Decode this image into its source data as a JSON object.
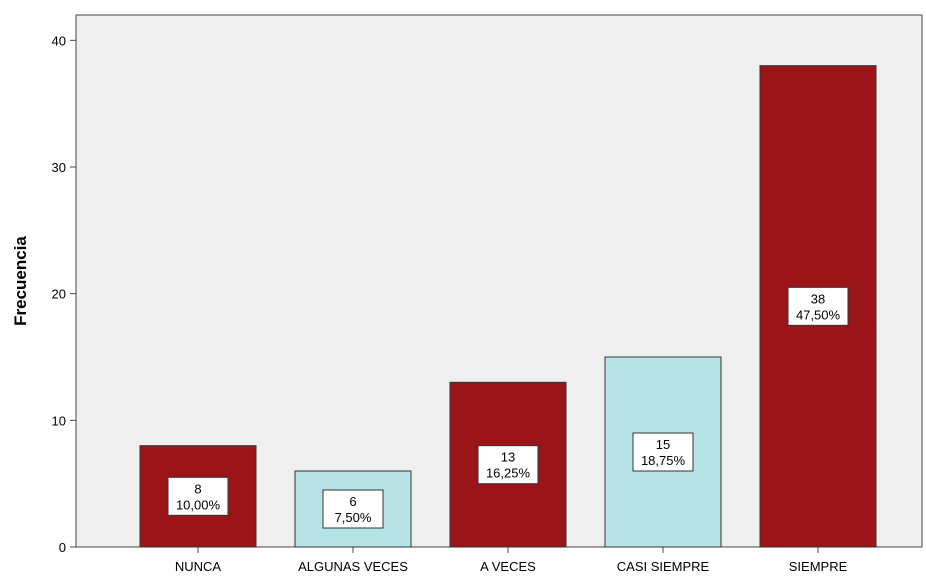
{
  "chart_data": {
    "type": "bar",
    "categories": [
      "NUNCA",
      "ALGUNAS VECES",
      "A VECES",
      "CASI SIEMPRE",
      "SIEMPRE"
    ],
    "values": [
      8,
      6,
      13,
      15,
      38
    ],
    "percent_labels": [
      "10,00%",
      "7,50%",
      "16,25%",
      "18,75%",
      "47,50%"
    ],
    "bar_colors": [
      "#9b1418",
      "#b6e3e6",
      "#9b1418",
      "#b6e3e6",
      "#9b1418"
    ],
    "ylabel": "Frecuencia",
    "xlabel": "",
    "ylim": [
      0,
      42
    ],
    "yticks": [
      0,
      10,
      20,
      30,
      40
    ],
    "grid": false,
    "legend": "none",
    "plot_background": "#efefef",
    "bar_edge": "#333333"
  }
}
